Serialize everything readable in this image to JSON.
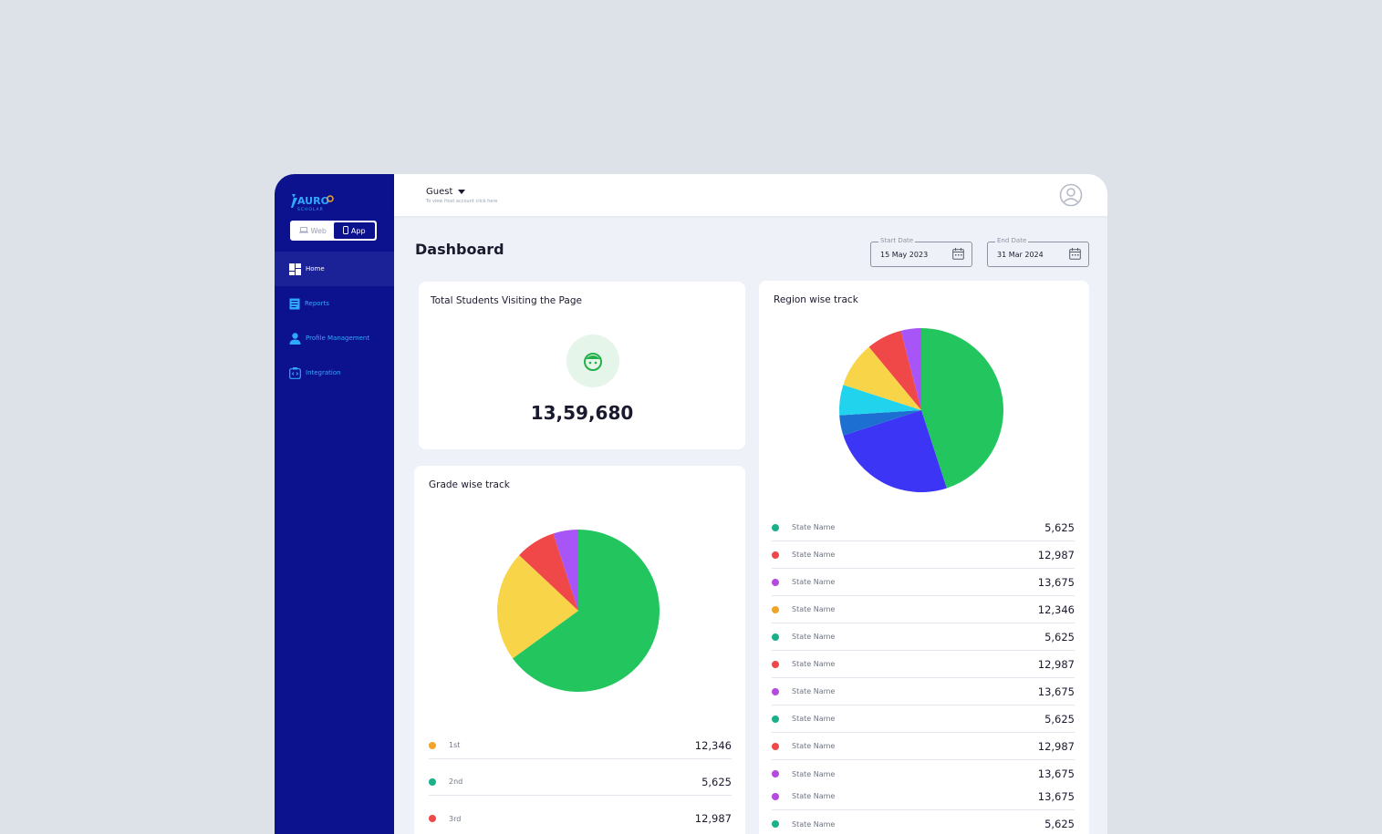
{
  "brand": {
    "name": "AURO",
    "tagline": "SCHOLAR"
  },
  "mode_toggle": {
    "web_label": "Web",
    "app_label": "App",
    "selected": "App"
  },
  "sidebar": {
    "items": [
      {
        "label": "Home",
        "icon": "dashboard-grid-icon",
        "active": true
      },
      {
        "label": "Reports",
        "icon": "document-icon",
        "active": false
      },
      {
        "label": "Profile Management",
        "icon": "user-icon",
        "active": false
      },
      {
        "label": "Integration",
        "icon": "code-icon",
        "active": false
      }
    ]
  },
  "header": {
    "user": "Guest",
    "subtitle": "To view Host account click here"
  },
  "page": {
    "title": "Dashboard"
  },
  "filters": {
    "start": {
      "label": "Start Date",
      "value": "15 May 2023"
    },
    "end": {
      "label": "End Date",
      "value": "31 Mar 2024"
    }
  },
  "visits": {
    "title": "Total Students Visiting the Page",
    "count": "13,59,680"
  },
  "grade": {
    "title": "Grade wise track",
    "rows": [
      {
        "label": "1st",
        "value": "12,346",
        "color": "#f2a42a"
      },
      {
        "label": "2nd",
        "value": "5,625",
        "color": "#19b08a"
      },
      {
        "label": "3rd",
        "value": "12,987",
        "color": "#f04848"
      }
    ]
  },
  "region": {
    "title": "Region wise track",
    "rows": [
      {
        "label": "State Name",
        "value": "5,625",
        "color": "#19b08a"
      },
      {
        "label": "State Name",
        "value": "12,987",
        "color": "#f04848"
      },
      {
        "label": "State Name",
        "value": "13,675",
        "color": "#b54ae0"
      },
      {
        "label": "State Name",
        "value": "12,346",
        "color": "#f2a42a"
      },
      {
        "label": "State Name",
        "value": "5,625",
        "color": "#19b08a"
      },
      {
        "label": "State Name",
        "value": "12,987",
        "color": "#f04848"
      },
      {
        "label": "State Name",
        "value": "13,675",
        "color": "#b54ae0"
      },
      {
        "label": "State Name",
        "value": "5,625",
        "color": "#19b08a"
      },
      {
        "label": "State Name",
        "value": "12,987",
        "color": "#f04848"
      },
      {
        "label": "State Name",
        "value": "13,675",
        "color": "#b54ae0"
      },
      {
        "label": "State Name",
        "value": "13,675",
        "color": "#b54ae0"
      },
      {
        "label": "State Name",
        "value": "5,625",
        "color": "#19b08a"
      }
    ]
  },
  "chart_data": [
    {
      "type": "pie",
      "title": "Grade wise track",
      "slices": [
        {
          "value": 65,
          "color": "#22c55e"
        },
        {
          "value": 22,
          "color": "#f8d548"
        },
        {
          "value": 8,
          "color": "#f04848"
        },
        {
          "value": 5,
          "color": "#a855f7"
        }
      ]
    },
    {
      "type": "pie",
      "title": "Region wise track",
      "slices": [
        {
          "value": 45,
          "color": "#22c55e"
        },
        {
          "value": 25,
          "color": "#3d35f5"
        },
        {
          "value": 4,
          "color": "#1d6fd1"
        },
        {
          "value": 6,
          "color": "#22d3ee"
        },
        {
          "value": 9,
          "color": "#f8d548"
        },
        {
          "value": 7,
          "color": "#f04848"
        },
        {
          "value": 4,
          "color": "#a855f7"
        }
      ]
    }
  ]
}
